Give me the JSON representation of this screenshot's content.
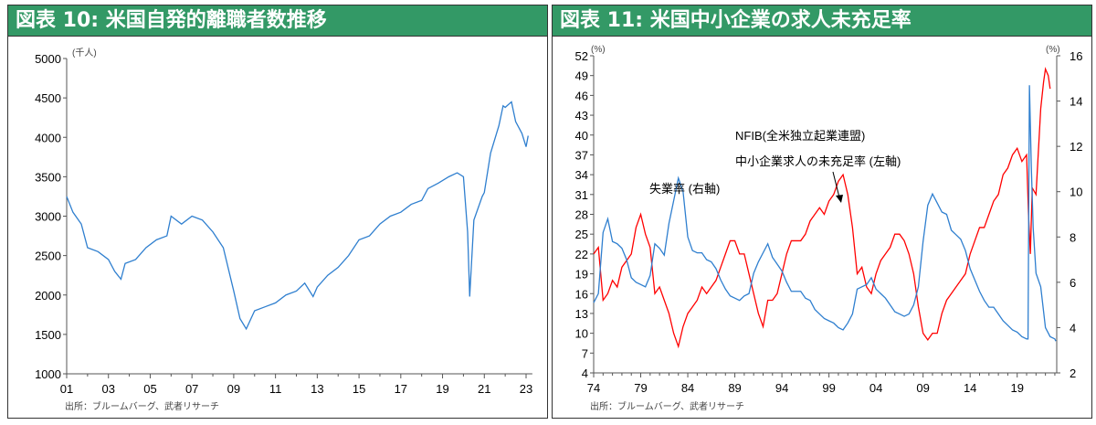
{
  "colors": {
    "header": "#339966",
    "blue": "#2f7fcf",
    "red": "#ff0000"
  },
  "chart_data": [
    {
      "type": "line",
      "title": "図表 10: 米国自発的離職者数推移",
      "ylabel": "(千人)",
      "ylim": [
        1000,
        5000
      ],
      "yticks": [
        "1000",
        "1500",
        "2000",
        "2500",
        "3000",
        "3500",
        "4000",
        "4500",
        "5000"
      ],
      "xlim": [
        2001,
        2023.3
      ],
      "xticks": [
        "01",
        "03",
        "05",
        "07",
        "09",
        "11",
        "13",
        "15",
        "17",
        "19",
        "21",
        "23"
      ],
      "source": "出所：ブルームバーグ、武者リサーチ",
      "series": [
        {
          "name": "自発的離職者数",
          "color": "#2f7fcf",
          "x": [
            2001.0,
            2001.3,
            2001.7,
            2002.0,
            2002.5,
            2003.0,
            2003.3,
            2003.6,
            2003.8,
            2004.3,
            2004.8,
            2005.3,
            2005.8,
            2006.0,
            2006.5,
            2007.0,
            2007.5,
            2008.0,
            2008.5,
            2009.0,
            2009.3,
            2009.6,
            2010.0,
            2010.5,
            2011.0,
            2011.5,
            2012.0,
            2012.4,
            2012.8,
            2013.0,
            2013.5,
            2014.0,
            2014.5,
            2015.0,
            2015.5,
            2016.0,
            2016.5,
            2017.0,
            2017.5,
            2018.0,
            2018.3,
            2018.8,
            2019.3,
            2019.7,
            2020.0,
            2020.2,
            2020.3,
            2020.5,
            2020.9,
            2021.0,
            2021.3,
            2021.7,
            2021.9,
            2022.0,
            2022.3,
            2022.5,
            2022.8,
            2023.0,
            2023.1
          ],
          "y": [
            3250,
            3050,
            2900,
            2600,
            2550,
            2450,
            2300,
            2200,
            2400,
            2450,
            2600,
            2700,
            2750,
            3000,
            2900,
            3000,
            2950,
            2800,
            2600,
            2050,
            1700,
            1570,
            1800,
            1850,
            1900,
            2000,
            2050,
            2150,
            1980,
            2100,
            2250,
            2350,
            2500,
            2700,
            2750,
            2900,
            3000,
            3050,
            3150,
            3200,
            3350,
            3420,
            3500,
            3550,
            3500,
            2800,
            1980,
            2950,
            3250,
            3300,
            3800,
            4150,
            4400,
            4380,
            4450,
            4200,
            4050,
            3880,
            4020
          ]
        }
      ]
    },
    {
      "type": "line",
      "title": "図表 11: 米国中小企業の求人未充足率",
      "ylabel_left": "(%)",
      "ylabel_right": "(%)",
      "ylim_left": [
        4,
        52
      ],
      "ylim_right": [
        2,
        16
      ],
      "yticks_left": [
        "4",
        "7",
        "10",
        "13",
        "16",
        "19",
        "22",
        "25",
        "28",
        "31",
        "34",
        "37",
        "40",
        "43",
        "46",
        "49",
        "52"
      ],
      "yticks_right": [
        "2",
        "4",
        "6",
        "8",
        "10",
        "12",
        "14",
        "16"
      ],
      "xlim": [
        1974,
        2023.2
      ],
      "xticks": [
        "74",
        "79",
        "84",
        "89",
        "94",
        "99",
        "04",
        "09",
        "14",
        "19"
      ],
      "source": "出所：ブルームバーグ、武者リサーチ",
      "annotations": {
        "unemp": "失業率 (右軸)",
        "nfib1": "NFIB(全米独立起業連盟)",
        "nfib2": "中小企業求人の未充足率 (左軸)"
      },
      "series": [
        {
          "name": "NFIB 中小企業求人の未充足率 (左軸)",
          "axis": "left",
          "color": "#ff0000",
          "x": [
            1974.0,
            1974.5,
            1975.0,
            1975.5,
            1976.0,
            1976.5,
            1977.0,
            1977.5,
            1978.0,
            1978.5,
            1979.0,
            1979.5,
            1980.0,
            1980.5,
            1981.0,
            1981.5,
            1982.0,
            1982.5,
            1983.0,
            1983.5,
            1984.0,
            1984.5,
            1985.0,
            1985.5,
            1986.0,
            1986.5,
            1987.0,
            1987.5,
            1988.0,
            1988.5,
            1989.0,
            1989.5,
            1990.0,
            1990.5,
            1991.0,
            1991.5,
            1992.0,
            1992.5,
            1993.0,
            1993.5,
            1994.0,
            1994.5,
            1995.0,
            1995.5,
            1996.0,
            1996.5,
            1997.0,
            1997.5,
            1998.0,
            1998.5,
            1999.0,
            1999.5,
            2000.0,
            2000.5,
            2001.0,
            2001.5,
            2002.0,
            2002.5,
            2003.0,
            2003.5,
            2004.0,
            2004.5,
            2005.0,
            2005.5,
            2006.0,
            2006.5,
            2007.0,
            2007.5,
            2008.0,
            2008.5,
            2009.0,
            2009.5,
            2010.0,
            2010.5,
            2011.0,
            2011.5,
            2012.0,
            2012.5,
            2013.0,
            2013.5,
            2014.0,
            2014.5,
            2015.0,
            2015.5,
            2016.0,
            2016.5,
            2017.0,
            2017.5,
            2018.0,
            2018.5,
            2019.0,
            2019.5,
            2020.0,
            2020.2,
            2020.4,
            2020.6,
            2021.0,
            2021.5,
            2021.8,
            2022.0,
            2022.3,
            2022.5
          ],
          "y": [
            22,
            23,
            15,
            16,
            18,
            17,
            20,
            21,
            22,
            26,
            28,
            25,
            23,
            16,
            17,
            15,
            13,
            10,
            8,
            11,
            13,
            14,
            15,
            17,
            16,
            17,
            18,
            20,
            22,
            24,
            24,
            22,
            22,
            19,
            16,
            13,
            11,
            15,
            15,
            16,
            19,
            22,
            24,
            24,
            24,
            25,
            27,
            28,
            29,
            28,
            30,
            31,
            33,
            34,
            31,
            26,
            19,
            20,
            17,
            16,
            19,
            21,
            22,
            23,
            25,
            25,
            24,
            22,
            19,
            14,
            10,
            9,
            10,
            10,
            13,
            15,
            16,
            17,
            18,
            19,
            22,
            24,
            26,
            26,
            28,
            30,
            31,
            34,
            35,
            37,
            38,
            36,
            37,
            28,
            22,
            32,
            31,
            44,
            48,
            50,
            49,
            47
          ]
        },
        {
          "name": "失業率 (右軸)",
          "axis": "right",
          "color": "#2f7fcf",
          "x": [
            1974.0,
            1974.5,
            1975.0,
            1975.5,
            1976.0,
            1976.5,
            1977.0,
            1977.5,
            1978.0,
            1978.5,
            1979.0,
            1979.5,
            1980.0,
            1980.5,
            1981.0,
            1981.5,
            1982.0,
            1982.5,
            1983.0,
            1983.5,
            1984.0,
            1984.5,
            1985.0,
            1985.5,
            1986.0,
            1986.5,
            1987.0,
            1987.5,
            1988.0,
            1988.5,
            1989.0,
            1989.5,
            1990.0,
            1990.5,
            1991.0,
            1991.5,
            1992.0,
            1992.5,
            1993.0,
            1993.5,
            1994.0,
            1994.5,
            1995.0,
            1995.5,
            1996.0,
            1996.5,
            1997.0,
            1997.5,
            1998.0,
            1998.5,
            1999.0,
            1999.5,
            2000.0,
            2000.5,
            2001.0,
            2001.5,
            2002.0,
            2002.5,
            2003.0,
            2003.5,
            2004.0,
            2004.5,
            2005.0,
            2005.5,
            2006.0,
            2006.5,
            2007.0,
            2007.5,
            2008.0,
            2008.5,
            2009.0,
            2009.5,
            2010.0,
            2010.5,
            2011.0,
            2011.5,
            2012.0,
            2012.5,
            2013.0,
            2013.5,
            2014.0,
            2014.5,
            2015.0,
            2015.5,
            2016.0,
            2016.5,
            2017.0,
            2017.5,
            2018.0,
            2018.5,
            2019.0,
            2019.5,
            2020.0,
            2020.15,
            2020.3,
            2020.5,
            2020.7,
            2021.0,
            2021.5,
            2022.0,
            2022.5,
            2023.0,
            2023.1
          ],
          "y": [
            5.1,
            5.5,
            8.2,
            8.8,
            7.8,
            7.7,
            7.5,
            7.0,
            6.2,
            6.0,
            5.9,
            5.8,
            6.3,
            7.7,
            7.5,
            7.2,
            8.6,
            9.6,
            10.6,
            10.0,
            8.0,
            7.4,
            7.3,
            7.3,
            7.0,
            6.9,
            6.6,
            6.1,
            5.7,
            5.4,
            5.3,
            5.2,
            5.4,
            5.5,
            6.4,
            6.9,
            7.3,
            7.7,
            7.1,
            6.8,
            6.5,
            6.0,
            5.6,
            5.6,
            5.6,
            5.3,
            5.2,
            4.8,
            4.6,
            4.4,
            4.3,
            4.2,
            4.0,
            3.9,
            4.2,
            4.6,
            5.7,
            5.8,
            5.9,
            6.2,
            5.7,
            5.5,
            5.3,
            5.0,
            4.7,
            4.6,
            4.5,
            4.6,
            5.0,
            5.8,
            7.8,
            9.4,
            9.9,
            9.5,
            9.1,
            9.0,
            8.3,
            8.1,
            7.9,
            7.4,
            6.6,
            6.1,
            5.6,
            5.2,
            4.9,
            4.9,
            4.6,
            4.3,
            4.1,
            3.9,
            3.8,
            3.6,
            3.5,
            3.5,
            14.7,
            11.1,
            8.4,
            6.4,
            5.8,
            4.0,
            3.6,
            3.5,
            3.4
          ]
        }
      ]
    }
  ]
}
